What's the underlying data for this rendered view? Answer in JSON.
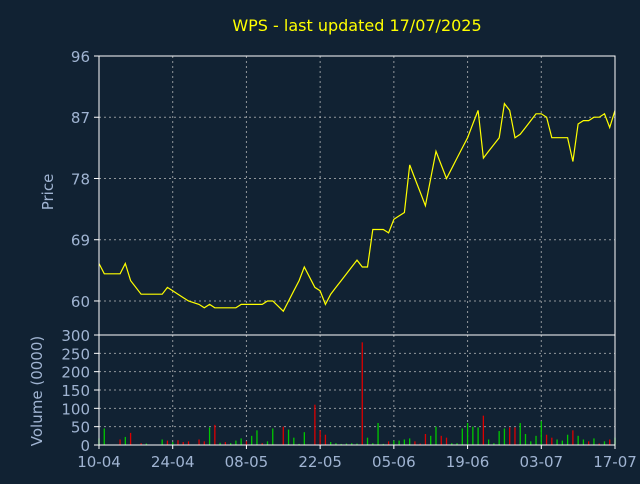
{
  "colors": {
    "background": "#112233",
    "frame": "#ffffff",
    "grid": "#c8c8c8",
    "title": "#ffff00",
    "axis_text": "#a0b4d2",
    "price_line": "#ffff00",
    "volume_up": "#00c800",
    "volume_down": "#dc0000"
  },
  "chart_data": [
    {
      "type": "line",
      "title": "WPS - last updated 17/07/2025",
      "ylabel": "Price",
      "ylim": [
        55,
        96
      ],
      "yticks": [
        "96",
        "87",
        "78",
        "69",
        "60"
      ],
      "ytick_values": [
        96,
        87,
        78,
        69,
        60
      ],
      "x_tick_labels": [
        "10-04",
        "24-04",
        "08-05",
        "22-05",
        "05-06",
        "19-06",
        "03-07",
        "17-07"
      ],
      "x_tick_days": [
        0,
        14,
        28,
        42,
        56,
        70,
        84,
        98
      ],
      "grid": true,
      "series": [
        {
          "x": [
            0,
            1,
            4,
            5,
            6,
            8,
            9,
            12,
            13,
            14,
            15,
            16,
            17,
            19,
            20,
            21,
            22,
            23,
            24,
            25,
            26,
            27,
            28,
            29,
            30,
            31,
            32,
            33,
            35,
            36,
            37,
            38,
            39,
            41,
            42,
            43,
            44,
            45,
            46,
            47,
            48,
            49,
            50,
            51,
            52,
            53,
            54,
            55,
            56,
            57,
            58,
            59,
            60,
            61,
            62,
            63,
            64,
            65,
            66,
            67,
            68,
            69,
            70,
            71,
            72,
            73,
            74,
            75,
            76,
            77,
            78,
            79,
            80,
            81,
            82,
            83,
            84,
            85,
            86,
            87,
            88,
            89,
            90,
            91,
            92,
            93,
            94,
            95,
            96,
            97,
            98
          ],
          "y": [
            65.5,
            64.0,
            64.0,
            65.5,
            63.0,
            61.0,
            61.0,
            61.0,
            62.0,
            61.5,
            61.0,
            60.5,
            60.0,
            59.5,
            59.0,
            59.5,
            59.0,
            59.0,
            59.0,
            59.0,
            59.0,
            59.5,
            59.5,
            59.5,
            59.5,
            59.5,
            60.0,
            60.0,
            58.5,
            60.0,
            61.5,
            63.0,
            65.0,
            62.0,
            61.5,
            59.5,
            61.0,
            62.0,
            63.0,
            64.0,
            65.0,
            66.0,
            65.0,
            65.0,
            70.5,
            70.5,
            70.5,
            70.0,
            72.0,
            72.5,
            73.0,
            80.0,
            78.0,
            76.0,
            74.0,
            78.0,
            82.0,
            80.0,
            78.0,
            79.5,
            81.0,
            82.5,
            84.0,
            86.0,
            88.0,
            81.0,
            82.0,
            83.0,
            84.0,
            89.0,
            88.0,
            84.0,
            84.5,
            85.5,
            86.5,
            87.5,
            87.5,
            87.0,
            84.0,
            84.0,
            84.0,
            84.0,
            80.5,
            86.0,
            86.5,
            86.5,
            87.0,
            87.0,
            87.5,
            85.5,
            88.0
          ]
        }
      ]
    },
    {
      "type": "bar",
      "ylabel": "Volume (0000)",
      "ylim": [
        0,
        300
      ],
      "yticks": [
        "300",
        "250",
        "200",
        "150",
        "100",
        "50",
        "0"
      ],
      "ytick_values": [
        300,
        250,
        200,
        150,
        100,
        50,
        0
      ],
      "x_tick_labels": [
        "10-04",
        "24-04",
        "08-05",
        "22-05",
        "05-06",
        "19-06",
        "03-07",
        "17-07"
      ],
      "x_tick_days": [
        0,
        14,
        28,
        42,
        56,
        70,
        84,
        98
      ],
      "grid": true,
      "series": [
        {
          "x": [
            0,
            1,
            4,
            5,
            6,
            8,
            9,
            12,
            13,
            14,
            15,
            16,
            17,
            19,
            20,
            21,
            22,
            23,
            24,
            25,
            26,
            27,
            28,
            29,
            30,
            31,
            32,
            33,
            35,
            36,
            37,
            38,
            39,
            41,
            42,
            43,
            44,
            45,
            46,
            47,
            48,
            49,
            50,
            51,
            52,
            53,
            54,
            55,
            56,
            57,
            58,
            59,
            60,
            61,
            62,
            63,
            64,
            65,
            66,
            67,
            68,
            69,
            70,
            71,
            72,
            73,
            74,
            75,
            76,
            77,
            78,
            79,
            80,
            81,
            82,
            83,
            84,
            85,
            86,
            87,
            88,
            89,
            90,
            91,
            92,
            93,
            94,
            95,
            96,
            97,
            98
          ],
          "values": [
            18,
            45,
            15,
            22,
            33,
            5,
            4,
            15,
            12,
            8,
            13,
            8,
            10,
            15,
            10,
            48,
            55,
            6,
            8,
            5,
            12,
            18,
            10,
            25,
            40,
            5,
            10,
            45,
            50,
            42,
            20,
            3,
            35,
            110,
            40,
            28,
            8,
            5,
            3,
            4,
            5,
            4,
            280,
            20,
            5,
            60,
            3,
            10,
            12,
            12,
            15,
            18,
            10,
            4,
            30,
            25,
            50,
            25,
            20,
            5,
            5,
            45,
            60,
            50,
            48,
            80,
            15,
            5,
            38,
            45,
            48,
            48,
            60,
            30,
            10,
            25,
            65,
            28,
            20,
            15,
            12,
            28,
            40,
            25,
            15,
            10,
            18,
            4,
            10,
            15,
            20
          ],
          "direction": [
            "up",
            "up",
            "down",
            "up",
            "down",
            "down",
            "up",
            "up",
            "down",
            "up",
            "down",
            "down",
            "down",
            "down",
            "down",
            "up",
            "down",
            "up",
            "down",
            "up",
            "up",
            "up",
            "down",
            "up",
            "up",
            "down",
            "up",
            "up",
            "down",
            "up",
            "up",
            "up",
            "up",
            "down",
            "down",
            "down",
            "up",
            "up",
            "up",
            "up",
            "up",
            "up",
            "down",
            "up",
            "up",
            "up",
            "up",
            "down",
            "up",
            "up",
            "up",
            "up",
            "down",
            "down",
            "down",
            "up",
            "up",
            "down",
            "down",
            "up",
            "up",
            "up",
            "up",
            "up",
            "up",
            "down",
            "up",
            "up",
            "up",
            "up",
            "down",
            "down",
            "up",
            "up",
            "up",
            "up",
            "up",
            "down",
            "down",
            "up",
            "up",
            "up",
            "down",
            "up",
            "up",
            "down",
            "up",
            "down",
            "up",
            "down",
            "up"
          ]
        }
      ]
    }
  ]
}
